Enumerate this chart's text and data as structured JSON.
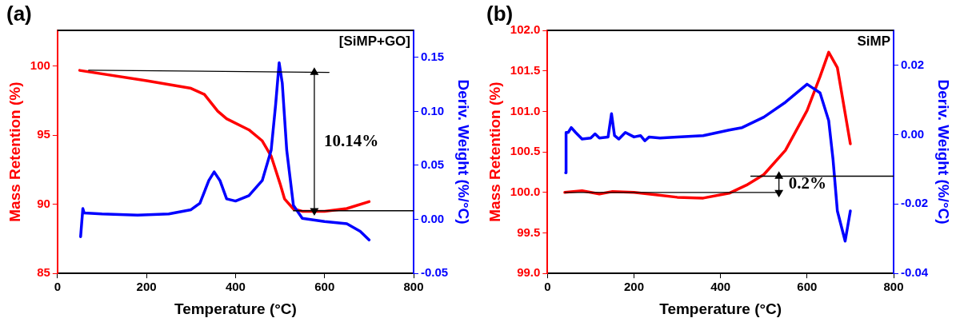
{
  "chart_data": [
    {
      "type": "line",
      "title": "(a)",
      "xlabel": "Temperature (°C)",
      "ylabel": "Mass Retention (%)",
      "y2label": "Deriv. Weight (%/°C)",
      "xlim": [
        0,
        800
      ],
      "xticks": [
        0,
        200,
        400,
        600,
        800
      ],
      "ylim": [
        85,
        102.6
      ],
      "yticks": [
        85,
        90,
        95,
        100
      ],
      "y2lim": [
        -0.05,
        0.175
      ],
      "y2ticks": [
        {
          "value": -0.05,
          "label": "-0.05"
        },
        {
          "value": 0,
          "label": "0.00"
        },
        {
          "value": 0.05,
          "label": "0.05"
        },
        {
          "value": 0.1,
          "label": "0.10"
        },
        {
          "value": 0.15,
          "label": "0.15"
        }
      ],
      "grid": false,
      "legend": false,
      "line_style": "solid",
      "series": [
        {
          "color": "#ff0000",
          "x": [
            50,
            200,
            300,
            330,
            360,
            380,
            430,
            460,
            480,
            500,
            510,
            530,
            550,
            600,
            650,
            700
          ],
          "values": [
            99.7,
            98.95,
            98.4,
            97.96,
            96.75,
            96.2,
            95.4,
            94.6,
            93.5,
            91.5,
            90.4,
            89.67,
            89.5,
            89.5,
            89.7,
            90.2
          ]
        },
        {
          "color": "#0000ff",
          "axis": "y2",
          "x": [
            52,
            57,
            60,
            100,
            180,
            250,
            300,
            320,
            340,
            352,
            365,
            380,
            400,
            430,
            460,
            480,
            490,
            498,
            505,
            515,
            530,
            550,
            600,
            650,
            680,
            700
          ],
          "values": [
            -0.016,
            0.01,
            0.006,
            0.005,
            0.004,
            0.005,
            0.009,
            0.015,
            0.036,
            0.044,
            0.036,
            0.019,
            0.017,
            0.022,
            0.036,
            0.064,
            0.106,
            0.145,
            0.126,
            0.064,
            0.013,
            0.001,
            -0.002,
            -0.004,
            -0.011,
            -0.019
          ]
        },
        {
          "color": "#000000",
          "x": [
            70,
            610
          ],
          "values": [
            99.71,
            99.56
          ]
        },
        {
          "color": "#000000",
          "x": [
            530,
            800
          ],
          "values": [
            89.54,
            89.54
          ]
        },
        {
          "color": "#000000",
          "x": [
            577,
            577
          ],
          "values": [
            99.56,
            89.54
          ],
          "marker": "triangle"
        }
      ],
      "annotations": [
        "[SiMP+GO]",
        "10.14%"
      ]
    },
    {
      "type": "line",
      "title": "(b)",
      "xlabel": "Temperature (°C)",
      "ylabel": "Mass Retention (%)",
      "y2label": "Deriv. Weight (%/°C)",
      "xlim": [
        0,
        800
      ],
      "xticks": [
        0,
        200,
        400,
        600,
        800
      ],
      "ylim": [
        99,
        102
      ],
      "yticks": [
        {
          "value": 99,
          "label": "99.0"
        },
        {
          "value": 99.5,
          "label": "99.5"
        },
        {
          "value": 100,
          "label": "100.0"
        },
        {
          "value": 100.5,
          "label": "100.5"
        },
        {
          "value": 101,
          "label": "101.0"
        },
        {
          "value": 101.5,
          "label": "101.5"
        },
        {
          "value": 102,
          "label": "102.0"
        }
      ],
      "y2lim": [
        -0.04,
        0.03
      ],
      "y2ticks": [
        {
          "value": -0.04,
          "label": "-0.04"
        },
        {
          "value": -0.02,
          "label": "-0.02"
        },
        {
          "value": 0,
          "label": "0.00"
        },
        {
          "value": 0.02,
          "label": "0.02"
        }
      ],
      "grid": false,
      "legend": false,
      "line_style": "solid",
      "series": [
        {
          "color": "#ff0000",
          "x": [
            40,
            80,
            120,
            150,
            200,
            250,
            300,
            360,
            420,
            460,
            500,
            550,
            600,
            630,
            650,
            670,
            700
          ],
          "values": [
            100.0,
            100.02,
            99.98,
            100.01,
            100.0,
            99.97,
            99.94,
            99.93,
            99.99,
            100.09,
            100.22,
            100.52,
            101.01,
            101.43,
            101.73,
            101.54,
            100.6
          ]
        },
        {
          "color": "#0000ff",
          "axis": "y2",
          "x": [
            42,
            43,
            48,
            55,
            65,
            80,
            100,
            110,
            120,
            140,
            148,
            155,
            165,
            180,
            200,
            215,
            225,
            235,
            260,
            300,
            360,
            420,
            450,
            500,
            550,
            600,
            630,
            650,
            660,
            670,
            688,
            700
          ],
          "values": [
            -0.011,
            0.0006,
            0.0006,
            0.002,
            0.0006,
            -0.0013,
            -0.001,
            0.0002,
            -0.001,
            -0.0007,
            0.006,
            -0.0003,
            -0.0013,
            0.0006,
            -0.0007,
            -0.0003,
            -0.0018,
            -0.0007,
            -0.001,
            -0.0007,
            -0.0003,
            0.0013,
            0.002,
            0.005,
            0.0093,
            0.0145,
            0.012,
            0.004,
            -0.0072,
            -0.022,
            -0.0307,
            -0.022
          ]
        },
        {
          "color": "#000000",
          "x": [
            470,
            800
          ],
          "values": [
            100.2,
            100.2
          ]
        },
        {
          "color": "#000000",
          "x": [
            40,
            535
          ],
          "values": [
            100.0,
            100.0
          ]
        },
        {
          "color": "#000000",
          "x": [
            535,
            535
          ],
          "values": [
            100.2,
            100.0
          ],
          "marker": "triangle"
        }
      ],
      "annotations": [
        "SiMP",
        "0.2%"
      ]
    }
  ]
}
